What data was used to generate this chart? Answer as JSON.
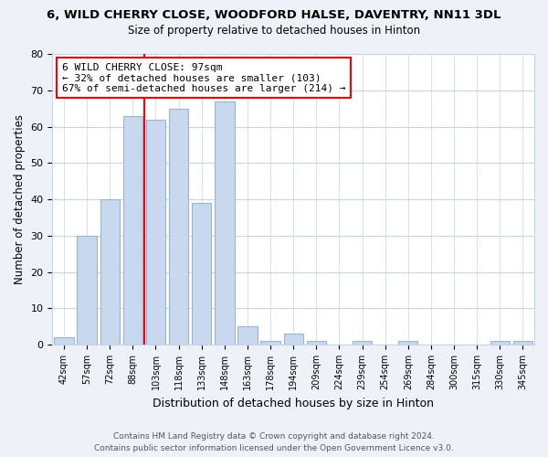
{
  "title": "6, WILD CHERRY CLOSE, WOODFORD HALSE, DAVENTRY, NN11 3DL",
  "subtitle": "Size of property relative to detached houses in Hinton",
  "xlabel": "Distribution of detached houses by size in Hinton",
  "ylabel": "Number of detached properties",
  "bar_labels": [
    "42sqm",
    "57sqm",
    "72sqm",
    "88sqm",
    "103sqm",
    "118sqm",
    "133sqm",
    "148sqm",
    "163sqm",
    "178sqm",
    "194sqm",
    "209sqm",
    "224sqm",
    "239sqm",
    "254sqm",
    "269sqm",
    "284sqm",
    "300sqm",
    "315sqm",
    "330sqm",
    "345sqm"
  ],
  "bar_values": [
    2,
    30,
    40,
    63,
    62,
    65,
    39,
    67,
    5,
    1,
    3,
    1,
    0,
    1,
    0,
    1,
    0,
    0,
    0,
    1,
    1
  ],
  "bar_color": "#c8d8ee",
  "bar_edge_color": "#9ab4d4",
  "red_line_x": 3.5,
  "annotation_box_text": "6 WILD CHERRY CLOSE: 97sqm\n← 32% of detached houses are smaller (103)\n67% of semi-detached houses are larger (214) →",
  "ylim": [
    0,
    80
  ],
  "yticks": [
    0,
    10,
    20,
    30,
    40,
    50,
    60,
    70,
    80
  ],
  "footer_line1": "Contains HM Land Registry data © Crown copyright and database right 2024.",
  "footer_line2": "Contains public sector information licensed under the Open Government Licence v3.0.",
  "background_color": "#eef2f8",
  "plot_background_color": "#ffffff",
  "grid_color": "#c8d4e8"
}
